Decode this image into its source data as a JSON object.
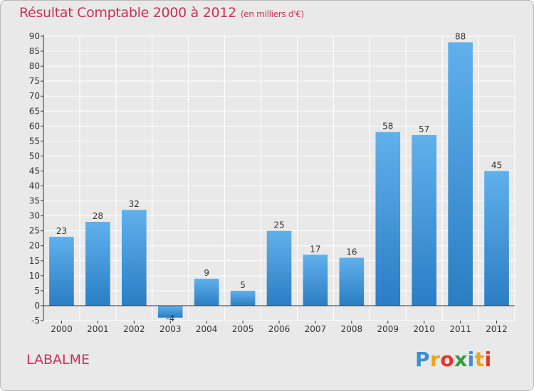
{
  "header": {
    "title": "Résultat Comptable 2000 à 2012",
    "subtitle": "(en milliers d'€)"
  },
  "footer": {
    "commune": "LABALME",
    "brand": "Proxiti",
    "brand_letters": [
      "P",
      "r",
      "o",
      "x",
      "i",
      "t",
      "i"
    ],
    "brand_colors": [
      "#3a8fd8",
      "#f0a21a",
      "#e8342c",
      "#2f9e3a",
      "#3a8fd8",
      "#f0a21a",
      "#e8342c"
    ]
  },
  "colors": {
    "bar_top": "#60b0ec",
    "bar_bottom": "#2a7ec2",
    "grid": "#ffffff",
    "axis": "#333333",
    "text": "#333333",
    "accent": "#c8325a"
  },
  "chart_data": {
    "type": "bar",
    "title": "Résultat Comptable 2000 à 2012",
    "xlabel": "",
    "ylabel": "",
    "categories": [
      "2000",
      "2001",
      "2002",
      "2003",
      "2004",
      "2005",
      "2006",
      "2007",
      "2008",
      "2009",
      "2010",
      "2011",
      "2012"
    ],
    "values": [
      23,
      28,
      32,
      -4,
      9,
      5,
      25,
      17,
      16,
      58,
      57,
      88,
      45
    ],
    "ylim": [
      -5,
      90
    ],
    "yticks": [
      -5,
      0,
      5,
      10,
      15,
      20,
      25,
      30,
      35,
      40,
      45,
      50,
      55,
      60,
      65,
      70,
      75,
      80,
      85,
      90
    ],
    "grid": true,
    "legend": "none"
  }
}
